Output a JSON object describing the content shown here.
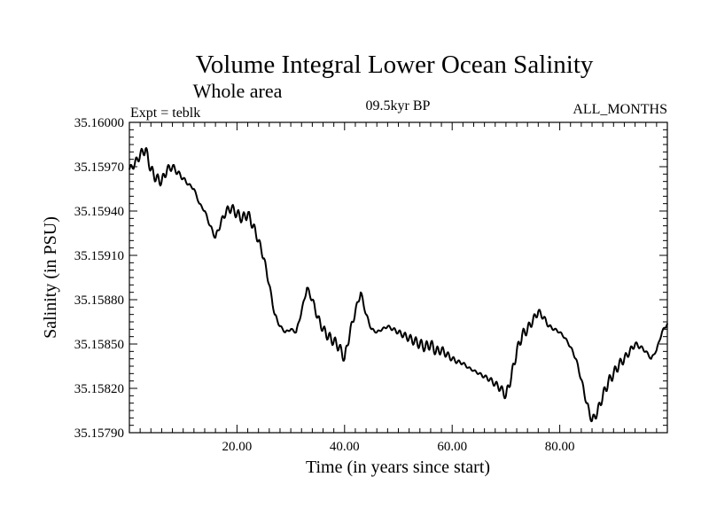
{
  "chart_data": {
    "type": "line",
    "title": "Volume Integral Lower Ocean Salinity",
    "subtitle": "Whole area",
    "annotations": {
      "left": "Expt = teblk",
      "center": "09.5kyr BP",
      "right": "ALL_MONTHS"
    },
    "xlabel": "Time (in years since start)",
    "ylabel": "Salinity (in PSU)",
    "xlim": [
      0,
      100
    ],
    "ylim": [
      35.1579,
      35.16
    ],
    "xticks": [
      20,
      40,
      60,
      80
    ],
    "xtick_labels": [
      "20.00",
      "40.00",
      "60.00",
      "80.00"
    ],
    "yticks": [
      35.1579,
      35.1582,
      35.1585,
      35.1588,
      35.1591,
      35.1594,
      35.1597,
      35.16
    ],
    "ytick_labels": [
      "35.15790",
      "35.15820",
      "35.15850",
      "35.15880",
      "35.15910",
      "35.15940",
      "35.15970",
      "35.16000"
    ],
    "grid": false,
    "series": [
      {
        "name": "Salinity",
        "x": [
          0,
          1,
          2,
          3,
          4,
          5,
          6,
          7,
          8,
          9,
          10,
          11,
          12,
          13,
          14,
          15,
          16,
          17,
          18,
          19,
          20,
          21,
          22,
          23,
          24,
          25,
          26,
          27,
          28,
          29,
          30,
          31,
          32,
          33,
          34,
          35,
          36,
          37,
          38,
          39,
          40,
          41,
          42,
          43,
          44,
          45,
          46,
          47,
          48,
          49,
          50,
          51,
          52,
          53,
          54,
          55,
          56,
          57,
          58,
          59,
          60,
          61,
          62,
          63,
          64,
          65,
          66,
          67,
          68,
          69,
          70,
          71,
          72,
          73,
          74,
          75,
          76,
          77,
          78,
          79,
          80,
          81,
          82,
          83,
          84,
          85,
          86,
          87,
          88,
          89,
          90,
          91,
          92,
          93,
          94,
          95,
          96,
          97,
          98,
          99,
          100
        ],
        "values": [
          35.15968,
          35.15972,
          35.15978,
          35.15982,
          35.15968,
          35.15962,
          35.1596,
          35.15968,
          35.1597,
          35.15966,
          35.15962,
          35.15958,
          35.15955,
          35.15945,
          35.1594,
          35.1593,
          35.15922,
          35.15932,
          35.1594,
          35.15942,
          35.15938,
          35.15935,
          35.15938,
          35.1593,
          35.1592,
          35.15908,
          35.1589,
          35.1587,
          35.15862,
          35.15858,
          35.1586,
          35.15858,
          35.15872,
          35.15888,
          35.1588,
          35.15868,
          35.1586,
          35.15855,
          35.15852,
          35.15848,
          35.1584,
          35.15858,
          35.15872,
          35.15885,
          35.1587,
          35.1586,
          35.15858,
          35.1586,
          35.15862,
          35.1586,
          35.15858,
          35.15856,
          35.15854,
          35.15852,
          35.1585,
          35.15848,
          35.1585,
          35.15845,
          35.15846,
          35.15843,
          35.1584,
          35.15838,
          35.15837,
          35.15834,
          35.15832,
          35.1583,
          35.15828,
          35.15826,
          35.15823,
          35.1582,
          35.15815,
          35.15828,
          35.15845,
          35.15856,
          35.1586,
          35.15866,
          35.15872,
          35.15868,
          35.15862,
          35.1586,
          35.15858,
          35.15854,
          35.15848,
          35.1584,
          35.15826,
          35.1581,
          35.15798,
          35.15804,
          35.15815,
          35.15824,
          35.1583,
          35.15836,
          35.1584,
          35.15845,
          35.1585,
          35.15848,
          35.15845,
          35.1584,
          35.15846,
          35.15858,
          35.15864
        ]
      }
    ]
  }
}
